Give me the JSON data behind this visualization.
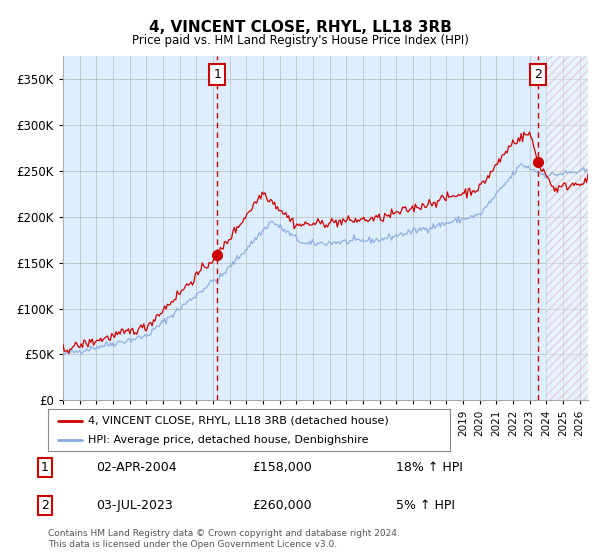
{
  "title": "4, VINCENT CLOSE, RHYL, LL18 3RB",
  "subtitle": "Price paid vs. HM Land Registry's House Price Index (HPI)",
  "ylabel_ticks": [
    "£0",
    "£50K",
    "£100K",
    "£150K",
    "£200K",
    "£250K",
    "£300K",
    "£350K"
  ],
  "ytick_values": [
    0,
    50000,
    100000,
    150000,
    200000,
    250000,
    300000,
    350000
  ],
  "ylim": [
    0,
    375000
  ],
  "xlim_start": 1995.0,
  "xlim_end": 2026.5,
  "hpi_color": "#88aadd",
  "price_color": "#cc0000",
  "background_color": "#ddeeff",
  "marker1_x": 2004.25,
  "marker1_y": 158000,
  "marker2_x": 2023.5,
  "marker2_y": 260000,
  "legend_line1": "4, VINCENT CLOSE, RHYL, LL18 3RB (detached house)",
  "legend_line2": "HPI: Average price, detached house, Denbighshire",
  "annotation1_date": "02-APR-2004",
  "annotation1_price": "£158,000",
  "annotation1_hpi": "18% ↑ HPI",
  "annotation2_date": "03-JUL-2023",
  "annotation2_price": "£260,000",
  "annotation2_hpi": "5% ↑ HPI",
  "footer": "Contains HM Land Registry data © Crown copyright and database right 2024.\nThis data is licensed under the Open Government Licence v3.0.",
  "grid_color": "#bbbbbb"
}
